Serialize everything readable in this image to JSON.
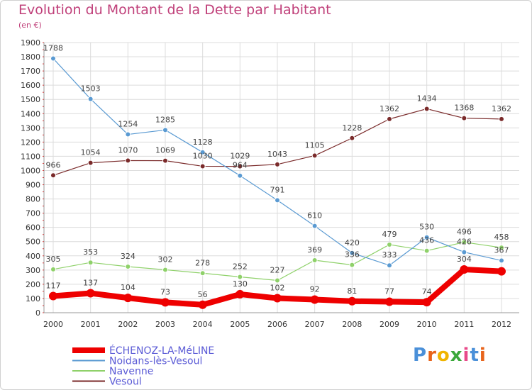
{
  "title": "Evolution du Montant de la Dette par Habitant",
  "subtitle": "(en €)",
  "logo": {
    "text": "Proxiti",
    "letter_colors": [
      "#4a90d9",
      "#e8641b",
      "#f0b400",
      "#3aa83a",
      "#e84a8a",
      "#4a90d9",
      "#e8641b"
    ]
  },
  "chart_data": {
    "type": "line",
    "title": "Evolution du Montant de la Dette par Habitant",
    "subtitle": "(en €)",
    "xlabel": "",
    "ylabel": "",
    "ylim": [
      0,
      1900
    ],
    "yticks": [
      0,
      100,
      200,
      300,
      400,
      500,
      600,
      700,
      800,
      900,
      1000,
      1100,
      1200,
      1300,
      1400,
      1500,
      1600,
      1700,
      1800,
      1900
    ],
    "grid": true,
    "legend_position": "bottom-left",
    "x": [
      "2000",
      "2001",
      "2002",
      "2003",
      "2004",
      "2005",
      "2006",
      "2007",
      "2008",
      "2009",
      "2010",
      "2011",
      "2012"
    ],
    "series": [
      {
        "name": "ÉCHENOZ-LA-MéLINE",
        "color": "#ee0000",
        "values": [
          117,
          137,
          104,
          73,
          56,
          130,
          102,
          92,
          81,
          77,
          74,
          304,
          291
        ],
        "labels": [
          "117",
          "137",
          "104",
          "73",
          "56",
          "130",
          "102",
          "92",
          "81",
          "77",
          "74",
          "304",
          ""
        ]
      },
      {
        "name": "Noidans-lès-Vesoul",
        "color": "#5a9ad2",
        "values": [
          1788,
          1503,
          1254,
          1285,
          1128,
          964,
          791,
          610,
          420,
          333,
          530,
          426,
          367
        ],
        "labels": [
          "1788",
          "1503",
          "1254",
          "1285",
          "1128",
          "964",
          "791",
          "610",
          "420",
          "333",
          "530",
          "426",
          "367"
        ]
      },
      {
        "name": "Navenne",
        "color": "#8fd16a",
        "values": [
          305,
          353,
          324,
          302,
          278,
          252,
          227,
          369,
          336,
          479,
          436,
          496,
          458
        ],
        "labels": [
          "305",
          "353",
          "324",
          "302",
          "278",
          "252",
          "227",
          "369",
          "336",
          "479",
          "436",
          "496",
          "458"
        ]
      },
      {
        "name": "Vesoul",
        "color": "#7a2a2a",
        "values": [
          966,
          1054,
          1070,
          1069,
          1030,
          1029,
          1043,
          1105,
          1228,
          1362,
          1434,
          1368,
          1362
        ],
        "labels": [
          "966",
          "1054",
          "1070",
          "1069",
          "1030",
          "1029",
          "1043",
          "1105",
          "1228",
          "1362",
          "1434",
          "1368",
          "1362"
        ]
      }
    ]
  }
}
